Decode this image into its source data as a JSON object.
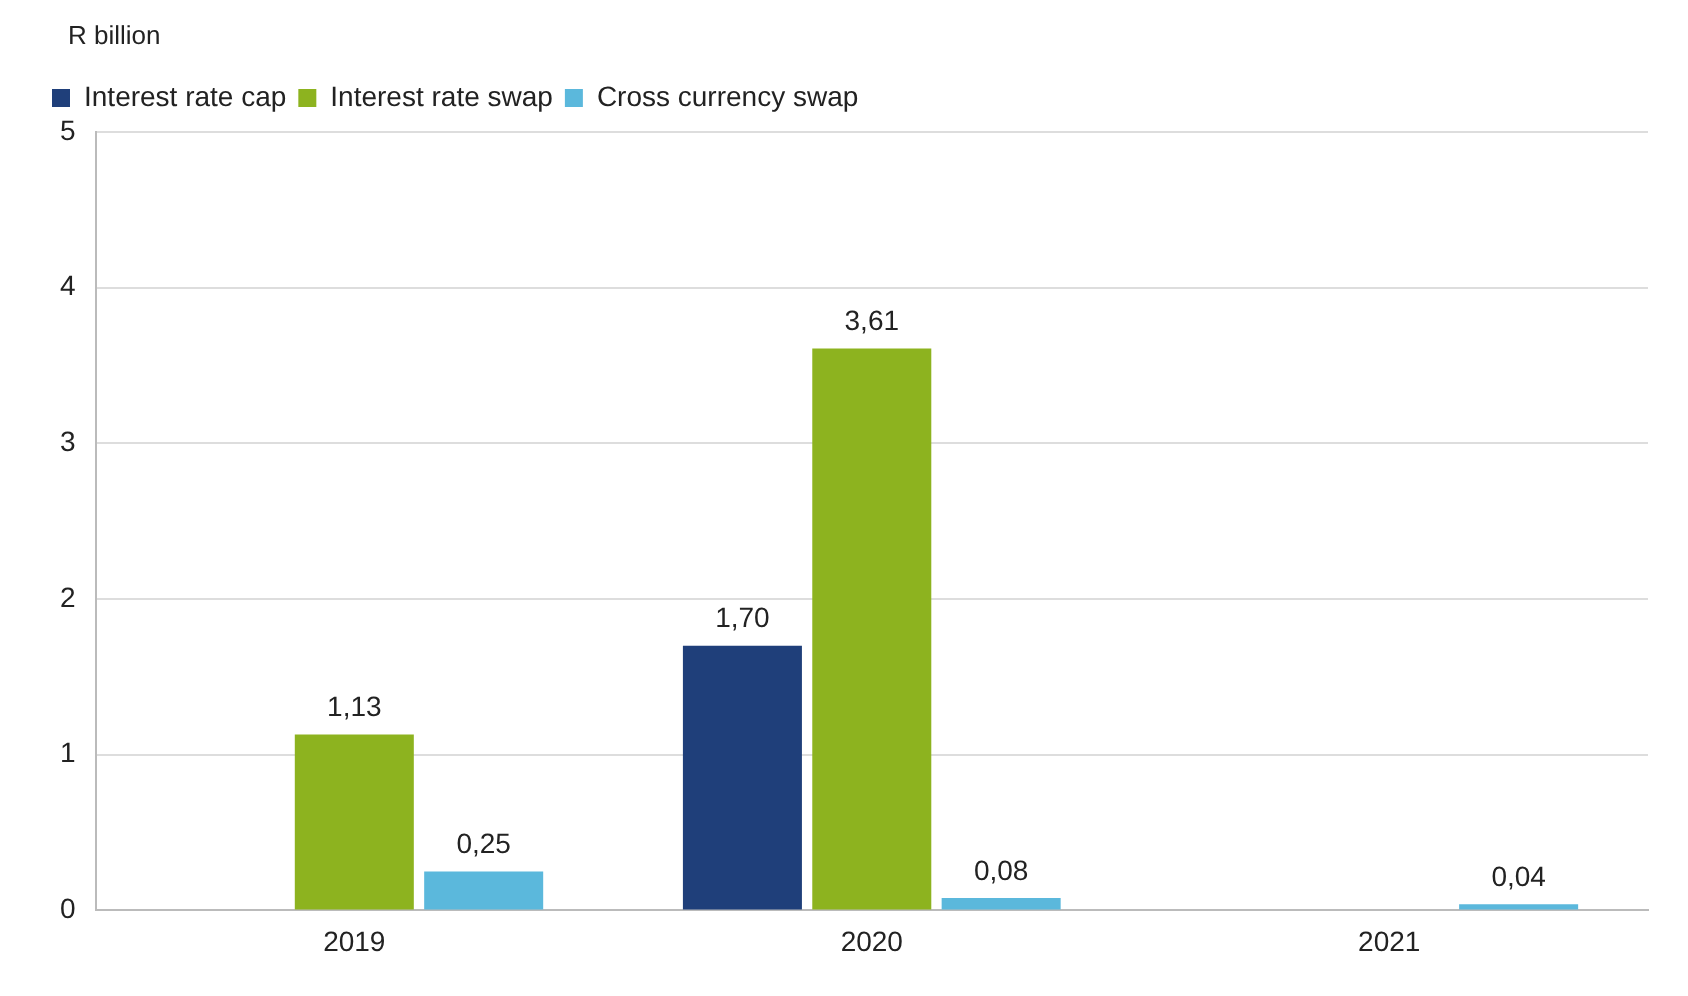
{
  "chart_data": {
    "type": "bar",
    "ylabel": "R billion",
    "categories": [
      "2019",
      "2020",
      "2021"
    ],
    "series": [
      {
        "name": "Interest rate cap",
        "color": "#1f3f7a",
        "values": [
          null,
          1.7,
          null
        ],
        "value_labels": [
          null,
          "1,70",
          null
        ]
      },
      {
        "name": "Interest rate swap",
        "color": "#8db31f",
        "values": [
          1.13,
          3.61,
          null
        ],
        "value_labels": [
          "1,13",
          "3,61",
          null
        ]
      },
      {
        "name": "Cross currency swap",
        "color": "#5bb8dc",
        "values": [
          0.25,
          0.08,
          0.04
        ],
        "value_labels": [
          "0,25",
          "0,08",
          "0,04"
        ]
      }
    ],
    "ylim": [
      0,
      5
    ],
    "yticks": [
      0,
      1,
      2,
      3,
      4,
      5
    ],
    "grid": "y",
    "legend": "top left"
  }
}
